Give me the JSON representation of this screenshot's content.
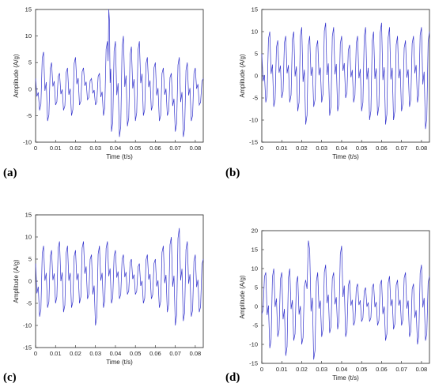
{
  "chart_data": [
    {
      "type": "line",
      "panel": "(a)",
      "xlabel": "Time (t/s)",
      "ylabel": "Amplitude (A/g)",
      "xlim": [
        0,
        0.084
      ],
      "ylim": [
        -10,
        15
      ],
      "xticks": [
        "0",
        "0.01",
        "0.02",
        "0.03",
        "0.04",
        "0.05",
        "0.06",
        "0.07",
        "0.08"
      ],
      "yticks": [
        "-10",
        "-5",
        "0",
        "5",
        "10",
        "15"
      ],
      "color": "#3333cc",
      "series": [
        {
          "x": [
            0,
            0.002,
            0.004,
            0.006,
            0.008,
            0.01,
            0.012,
            0.014,
            0.016,
            0.018,
            0.02,
            0.022,
            0.024,
            0.026,
            0.028,
            0.03,
            0.032,
            0.034,
            0.036,
            0.037,
            0.038,
            0.04,
            0.042,
            0.044,
            0.046,
            0.048,
            0.05,
            0.052,
            0.054,
            0.056,
            0.058,
            0.06,
            0.062,
            0.064,
            0.066,
            0.068,
            0.07,
            0.072,
            0.074,
            0.076,
            0.078,
            0.08,
            0.082,
            0.084
          ],
          "values": [
            2,
            -4,
            7,
            -6,
            5,
            -3,
            3,
            -4,
            4,
            -5,
            6,
            -3,
            4,
            -2,
            2,
            -3,
            3,
            -5,
            9,
            13,
            -8,
            9,
            -9,
            10,
            -7,
            8,
            -6,
            9,
            -5,
            6,
            -4,
            5,
            -6,
            4,
            -5,
            3,
            -8,
            6,
            -9,
            5,
            -6,
            4,
            -3,
            2
          ]
        }
      ]
    },
    {
      "type": "line",
      "panel": "(b)",
      "xlabel": "Time (t/s)",
      "ylabel": "Amplitude (A/g)",
      "xlim": [
        0,
        0.084
      ],
      "ylim": [
        -15,
        15
      ],
      "xticks": [
        "0",
        "0.01",
        "0.02",
        "0.03",
        "0.04",
        "0.05",
        "0.06",
        "0.07",
        "0.08"
      ],
      "yticks": [
        "-15",
        "-10",
        "-5",
        "0",
        "5",
        "10",
        "15"
      ],
      "color": "#3333cc",
      "series": [
        {
          "x": [
            0,
            0.002,
            0.004,
            0.006,
            0.008,
            0.01,
            0.012,
            0.014,
            0.016,
            0.018,
            0.02,
            0.022,
            0.024,
            0.026,
            0.028,
            0.03,
            0.032,
            0.034,
            0.036,
            0.038,
            0.04,
            0.042,
            0.044,
            0.046,
            0.048,
            0.05,
            0.052,
            0.054,
            0.056,
            0.058,
            0.06,
            0.062,
            0.064,
            0.066,
            0.068,
            0.07,
            0.072,
            0.074,
            0.076,
            0.078,
            0.08,
            0.082,
            0.084
          ],
          "values": [
            5,
            -6,
            10,
            -7,
            8,
            -5,
            9,
            -6,
            10,
            -8,
            11,
            -11,
            9,
            -7,
            8,
            -6,
            12,
            -9,
            11,
            -8,
            9,
            -5,
            7,
            -6,
            9,
            -8,
            11,
            -10,
            10,
            -9,
            12,
            -11,
            11,
            -10,
            9,
            -8,
            8,
            -7,
            9,
            -6,
            11,
            -12,
            10
          ]
        }
      ]
    },
    {
      "type": "line",
      "panel": "(c)",
      "xlabel": "Time (t/s)",
      "ylabel": "Amplitude (A/g)",
      "xlim": [
        0,
        0.084
      ],
      "ylim": [
        -15,
        15
      ],
      "xticks": [
        "0",
        "0.01",
        "0.02",
        "0.03",
        "0.04",
        "0.05",
        "0.06",
        "0.07",
        "0.08"
      ],
      "yticks": [
        "-15",
        "-10",
        "-5",
        "0",
        "5",
        "10",
        "15"
      ],
      "color": "#3333cc",
      "series": [
        {
          "x": [
            0,
            0.002,
            0.004,
            0.006,
            0.008,
            0.01,
            0.012,
            0.014,
            0.016,
            0.018,
            0.02,
            0.022,
            0.024,
            0.026,
            0.028,
            0.03,
            0.032,
            0.034,
            0.036,
            0.038,
            0.04,
            0.042,
            0.044,
            0.046,
            0.048,
            0.05,
            0.052,
            0.054,
            0.056,
            0.058,
            0.06,
            0.062,
            0.064,
            0.066,
            0.068,
            0.07,
            0.072,
            0.074,
            0.076,
            0.078,
            0.08,
            0.082,
            0.084
          ],
          "values": [
            4,
            -8,
            8,
            -6,
            7,
            -5,
            9,
            -7,
            8,
            -6,
            7,
            -5,
            9,
            -4,
            6,
            -10,
            8,
            -6,
            9,
            -5,
            7,
            -4,
            6,
            -3,
            5,
            -3,
            4,
            -5,
            6,
            -4,
            5,
            -6,
            8,
            -7,
            10,
            -10,
            12,
            -9,
            9,
            -8,
            6,
            -7,
            5
          ]
        }
      ]
    },
    {
      "type": "line",
      "panel": "(d)",
      "xlabel": "Time (t/s)",
      "ylabel": "Amplitude (A/g)",
      "xlim": [
        0,
        0.084
      ],
      "ylim": [
        -15,
        20
      ],
      "xticks": [
        "0",
        "0.01",
        "0.02",
        "0.03",
        "0.04",
        "0.05",
        "0.06",
        "0.07",
        "0.08"
      ],
      "yticks": [
        "-15",
        "-10",
        "-5",
        "0",
        "5",
        "10",
        "15",
        "20"
      ],
      "color": "#3333cc",
      "series": [
        {
          "x": [
            0,
            0.002,
            0.004,
            0.006,
            0.008,
            0.01,
            0.012,
            0.014,
            0.016,
            0.018,
            0.02,
            0.022,
            0.024,
            0.026,
            0.028,
            0.03,
            0.032,
            0.034,
            0.036,
            0.038,
            0.04,
            0.042,
            0.044,
            0.046,
            0.048,
            0.05,
            0.052,
            0.054,
            0.056,
            0.058,
            0.06,
            0.062,
            0.064,
            0.066,
            0.068,
            0.07,
            0.072,
            0.074,
            0.076,
            0.078,
            0.08,
            0.082,
            0.084
          ],
          "values": [
            -2,
            9,
            -11,
            10,
            -8,
            9,
            -13,
            10,
            -9,
            8,
            -10,
            7,
            15,
            -14,
            9,
            -8,
            11,
            -7,
            9,
            -6,
            16,
            -8,
            7,
            -5,
            6,
            -4,
            5,
            -4,
            6,
            -5,
            7,
            -9,
            8,
            -6,
            7,
            -5,
            9,
            -8,
            6,
            -10,
            11,
            -9,
            8
          ]
        }
      ]
    }
  ]
}
